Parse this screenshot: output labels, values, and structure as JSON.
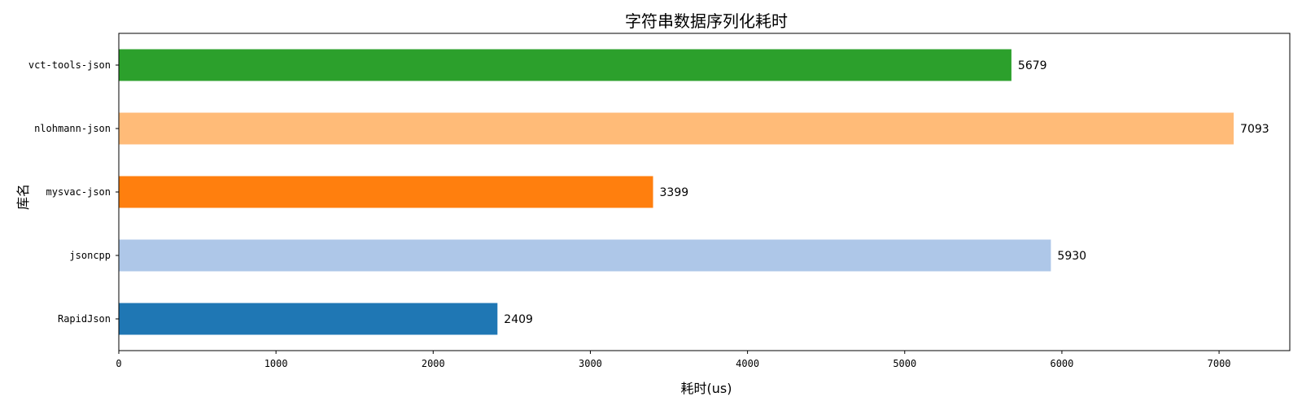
{
  "chart_data": {
    "type": "bar",
    "orientation": "horizontal",
    "title": "字符串数据序列化耗时",
    "xlabel": "耗时(us)",
    "ylabel": "库名",
    "categories": [
      "RapidJson",
      "jsoncpp",
      "mysvac-json",
      "nlohmann-json",
      "vct-tools-json"
    ],
    "values": [
      2409,
      5930,
      3399,
      7093,
      5679
    ],
    "colors": [
      "#1f77b4",
      "#aec7e8",
      "#ff7f0e",
      "#ffbb78",
      "#2ca02c"
    ],
    "xlim": [
      0,
      7450
    ],
    "xticks": [
      0,
      1000,
      2000,
      3000,
      4000,
      5000,
      6000,
      7000
    ],
    "grid": false,
    "legend": "none"
  }
}
